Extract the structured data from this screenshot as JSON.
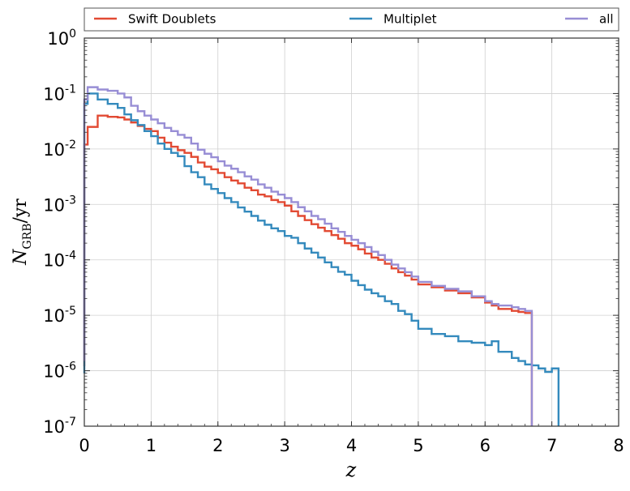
{
  "chart_data": {
    "type": "line",
    "step": true,
    "xlabel_main": "z",
    "ylabel_main": "N",
    "ylabel_sub": "GRB",
    "ylabel_tail": "/yr",
    "xlim": [
      0,
      8
    ],
    "ylim_log10": [
      -7,
      0
    ],
    "yscale": "log",
    "grid": true,
    "legend_position": "top, outside plot",
    "x_ticks": [
      "0",
      "1",
      "2",
      "3",
      "4",
      "5",
      "6",
      "7",
      "8"
    ],
    "y_tick_base": "10",
    "y_tick_exponents": [
      "0",
      "-1",
      "-2",
      "-3",
      "-4",
      "-5",
      "-6",
      "-7"
    ],
    "bin_edges": [
      0,
      0.05,
      0.2,
      0.35,
      0.5,
      0.6,
      0.7,
      0.8,
      0.9,
      1.0,
      1.1,
      1.2,
      1.3,
      1.4,
      1.5,
      1.6,
      1.7,
      1.8,
      1.9,
      2.0,
      2.1,
      2.2,
      2.3,
      2.4,
      2.5,
      2.6,
      2.7,
      2.8,
      2.9,
      3.0,
      3.1,
      3.2,
      3.3,
      3.4,
      3.5,
      3.6,
      3.7,
      3.8,
      3.9,
      4.0,
      4.1,
      4.2,
      4.3,
      4.4,
      4.5,
      4.6,
      4.7,
      4.8,
      4.9,
      5.0,
      5.2,
      5.4,
      5.6,
      5.8,
      6.0,
      6.1,
      6.2,
      6.4,
      6.5,
      6.6,
      6.7,
      6.8,
      6.9,
      7.0,
      7.1,
      7.2,
      7.4,
      7.6,
      7.8,
      7.9,
      8.0
    ],
    "series": [
      {
        "name": "Swift Doublets",
        "color": "#e24a33",
        "start_value": 1.2e-06,
        "values": [
          0.012,
          0.025,
          0.04,
          0.038,
          0.037,
          0.034,
          0.03,
          0.026,
          0.023,
          0.021,
          0.016,
          0.013,
          0.011,
          0.0095,
          0.0085,
          0.0072,
          0.0057,
          0.0048,
          0.0043,
          0.0037,
          0.0031,
          0.0027,
          0.0024,
          0.002,
          0.0018,
          0.0015,
          0.0014,
          0.0012,
          0.0011,
          0.00095,
          0.00075,
          0.00062,
          0.00052,
          0.00044,
          0.00038,
          0.00033,
          0.00028,
          0.00024,
          0.0002,
          0.00018,
          0.000155,
          0.00013,
          0.00011,
          0.0001,
          8.5e-05,
          7e-05,
          6e-05,
          5.2e-05,
          4.4e-05,
          3.6e-05,
          3.2e-05,
          2.8e-05,
          2.5e-05,
          2.1e-05,
          1.7e-05,
          1.5e-05,
          1.3e-05,
          1.2e-05,
          1.15e-05,
          1.1e-05
        ]
      },
      {
        "name": "Multiplet",
        "color": "#348abd",
        "start_value": 9e-07,
        "values": [
          0.065,
          0.1,
          0.078,
          0.065,
          0.055,
          0.042,
          0.033,
          0.027,
          0.021,
          0.017,
          0.0125,
          0.01,
          0.0085,
          0.0074,
          0.0049,
          0.0038,
          0.0031,
          0.0023,
          0.0019,
          0.0016,
          0.0013,
          0.0011,
          0.00088,
          0.00074,
          0.00062,
          0.00051,
          0.00043,
          0.00037,
          0.00033,
          0.00027,
          0.00025,
          0.0002,
          0.00016,
          0.000135,
          0.00011,
          9e-05,
          7.4e-05,
          6.1e-05,
          5.4e-05,
          4.2e-05,
          3.5e-05,
          2.9e-05,
          2.5e-05,
          2.2e-05,
          1.8e-05,
          1.6e-05,
          1.2e-05,
          1.05e-05,
          8e-06,
          5.7e-06,
          4.6e-06,
          4.2e-06,
          3.4e-06,
          3.2e-06,
          2.9e-06,
          3.4e-06,
          2.2e-06,
          1.7e-06,
          1.5e-06,
          1.3e-06,
          1.25e-06,
          1.1e-06,
          9.5e-07,
          1.1e-06
        ]
      },
      {
        "name": "all",
        "color": "#988ed5",
        "start_value": 1.5e-06,
        "values": [
          0.078,
          0.13,
          0.118,
          0.112,
          0.1,
          0.085,
          0.06,
          0.048,
          0.04,
          0.034,
          0.029,
          0.024,
          0.021,
          0.018,
          0.016,
          0.0125,
          0.0097,
          0.0082,
          0.0071,
          0.006,
          0.005,
          0.0044,
          0.0038,
          0.0032,
          0.0028,
          0.0023,
          0.002,
          0.0017,
          0.0015,
          0.0013,
          0.0011,
          0.00089,
          0.00075,
          0.00062,
          0.00054,
          0.00045,
          0.00037,
          0.00032,
          0.00027,
          0.00023,
          0.0002,
          0.00017,
          0.00014,
          0.000122,
          0.0001,
          8.2e-05,
          7e-05,
          6e-05,
          5e-05,
          4e-05,
          3.4e-05,
          3e-05,
          2.7e-05,
          2.2e-05,
          1.8e-05,
          1.6e-05,
          1.5e-05,
          1.4e-05,
          1.3e-05,
          1.2e-05
        ]
      }
    ]
  }
}
